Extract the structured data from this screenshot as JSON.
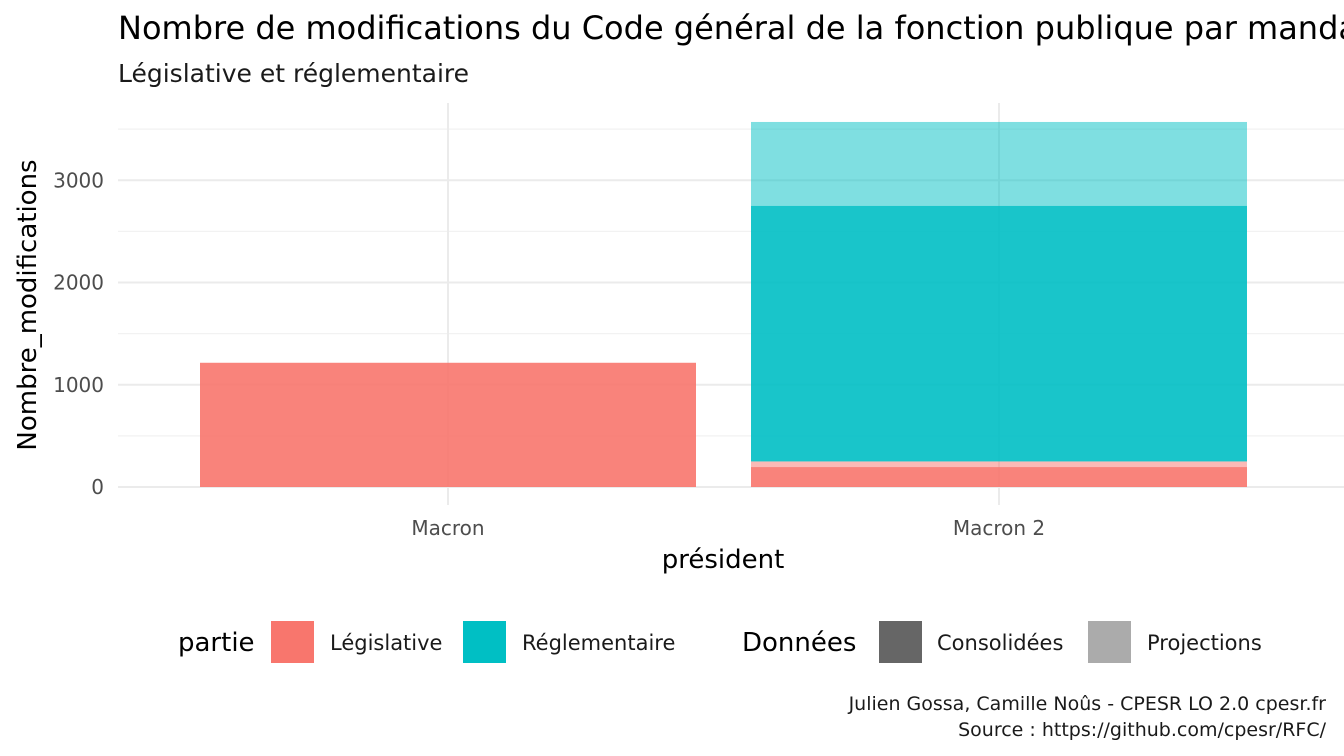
{
  "chart_data": {
    "type": "bar",
    "stacked": true,
    "title": "Nombre de modifications du Code général de la fonction publique par mandat",
    "subtitle": "Législative et réglementaire",
    "xlabel": "président",
    "ylabel": "Nombre_modifications",
    "categories": [
      "Macron",
      "Macron 2"
    ],
    "yticks": [
      "0",
      "1000",
      "2000",
      "3000"
    ],
    "ylim": [
      0,
      3500
    ],
    "grid": true,
    "legend_position": "bottom",
    "series": [
      {
        "partie": "Législative",
        "donnees": "Consolidées",
        "color": "#F8766D",
        "opacity": 0.9,
        "values": [
          1215,
          195
        ]
      },
      {
        "partie": "Législative",
        "donnees": "Projections",
        "color": "#F8766D",
        "opacity": 0.5,
        "values": [
          0,
          55
        ]
      },
      {
        "partie": "Réglementaire",
        "donnees": "Consolidées",
        "color": "#00BFC4",
        "opacity": 0.9,
        "values": [
          0,
          2500
        ]
      },
      {
        "partie": "Réglementaire",
        "donnees": "Projections",
        "color": "#00BFC4",
        "opacity": 0.5,
        "values": [
          0,
          820
        ]
      }
    ],
    "legend": {
      "partie": {
        "title": "partie",
        "items": [
          {
            "label": "Législative",
            "color": "#F8766D"
          },
          {
            "label": "Réglementaire",
            "color": "#00BFC4"
          }
        ]
      },
      "donnees": {
        "title": "Données",
        "items": [
          {
            "label": "Consolidées",
            "color": "#666666"
          },
          {
            "label": "Projections",
            "color": "#ABABAB"
          }
        ]
      }
    },
    "caption_lines": [
      "Julien Gossa, Camille Noûs - CPESR LO 2.0 cpesr.fr",
      "Source : https://github.com/cpesr/RFC/"
    ]
  }
}
